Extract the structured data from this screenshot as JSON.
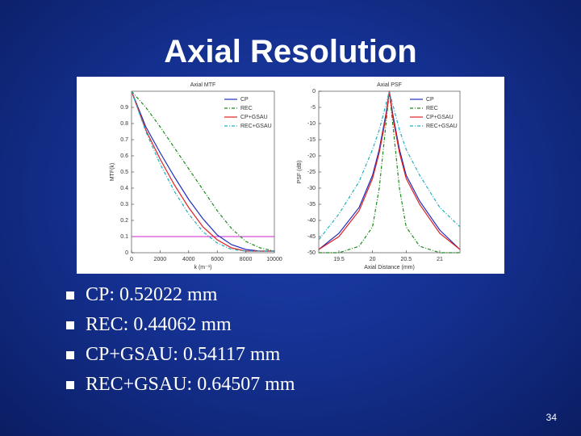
{
  "slide": {
    "title": "Axial Resolution",
    "bullets": [
      "CP: 0.52022 mm",
      "REC: 0.44062 mm",
      "CP+GSAU: 0.54117 mm",
      "REC+GSAU: 0.64507 mm"
    ],
    "page_number": "34"
  },
  "chart_data": [
    {
      "type": "line",
      "title": "Axial MTF",
      "xlabel": "k (m⁻¹)",
      "ylabel": "MTF(k)",
      "x": [
        0,
        1000,
        2000,
        3000,
        4000,
        5000,
        6000,
        7000,
        8000,
        9000,
        10000
      ],
      "xlim": [
        0,
        10000
      ],
      "ylim": [
        0,
        1
      ],
      "xticks": [
        0,
        2000,
        4000,
        6000,
        8000,
        10000
      ],
      "yticks": [
        0,
        0.1,
        0.2,
        0.3,
        0.4,
        0.5,
        0.6,
        0.7,
        0.8,
        0.9
      ],
      "legend": "upper right",
      "hline": 0.1,
      "hline_color": "#cc22cc",
      "series": [
        {
          "name": "CP",
          "color": "#1f2fbf",
          "dash": false,
          "values": [
            1,
            0.78,
            0.62,
            0.47,
            0.33,
            0.21,
            0.11,
            0.05,
            0.02,
            0.01,
            0.01
          ]
        },
        {
          "name": "REC",
          "color": "#1a8a1a",
          "dash": true,
          "values": [
            1,
            0.9,
            0.78,
            0.65,
            0.52,
            0.39,
            0.26,
            0.15,
            0.07,
            0.03,
            0.01
          ]
        },
        {
          "name": "CP+GSAU",
          "color": "#e02020",
          "dash": false,
          "values": [
            1,
            0.76,
            0.58,
            0.42,
            0.28,
            0.16,
            0.08,
            0.03,
            0.01,
            0.01,
            0.01
          ]
        },
        {
          "name": "REC+GSAU",
          "color": "#20b0c0",
          "dash": true,
          "values": [
            1,
            0.75,
            0.55,
            0.38,
            0.24,
            0.13,
            0.06,
            0.02,
            0.01,
            0.01,
            0.01
          ]
        }
      ]
    },
    {
      "type": "line",
      "title": "Axial PSF",
      "xlabel": "Axial Distance (mm)",
      "ylabel": "PSF (dB)",
      "x": [
        19.2,
        19.5,
        19.8,
        20,
        20.1,
        20.2,
        20.25,
        20.3,
        20.4,
        20.5,
        20.7,
        21,
        21.3
      ],
      "xlim": [
        19.2,
        21.3
      ],
      "ylim": [
        -50,
        0
      ],
      "xticks": [
        19.5,
        20,
        20.5,
        21
      ],
      "yticks": [
        0,
        -5,
        -10,
        -15,
        -20,
        -25,
        -30,
        -35,
        -40,
        -45,
        -50
      ],
      "legend": "upper right",
      "series": [
        {
          "name": "CP",
          "color": "#1f2fbf",
          "dash": false,
          "values": [
            -49,
            -44,
            -36,
            -26,
            -18,
            -7,
            0,
            -7,
            -18,
            -26,
            -34,
            -43,
            -49
          ]
        },
        {
          "name": "REC",
          "color": "#1a8a1a",
          "dash": true,
          "values": [
            -50,
            -50,
            -48,
            -42,
            -30,
            -10,
            0,
            -10,
            -30,
            -42,
            -48,
            -50,
            -50
          ]
        },
        {
          "name": "CP+GSAU",
          "color": "#e02020",
          "dash": false,
          "values": [
            -49,
            -45,
            -37,
            -27,
            -19,
            -8,
            0,
            -8,
            -19,
            -27,
            -35,
            -44,
            -49
          ]
        },
        {
          "name": "REC+GSAU",
          "color": "#20b0c0",
          "dash": true,
          "values": [
            -46,
            -38,
            -28,
            -18,
            -12,
            -4,
            0,
            -4,
            -12,
            -18,
            -26,
            -36,
            -42
          ]
        }
      ]
    }
  ]
}
